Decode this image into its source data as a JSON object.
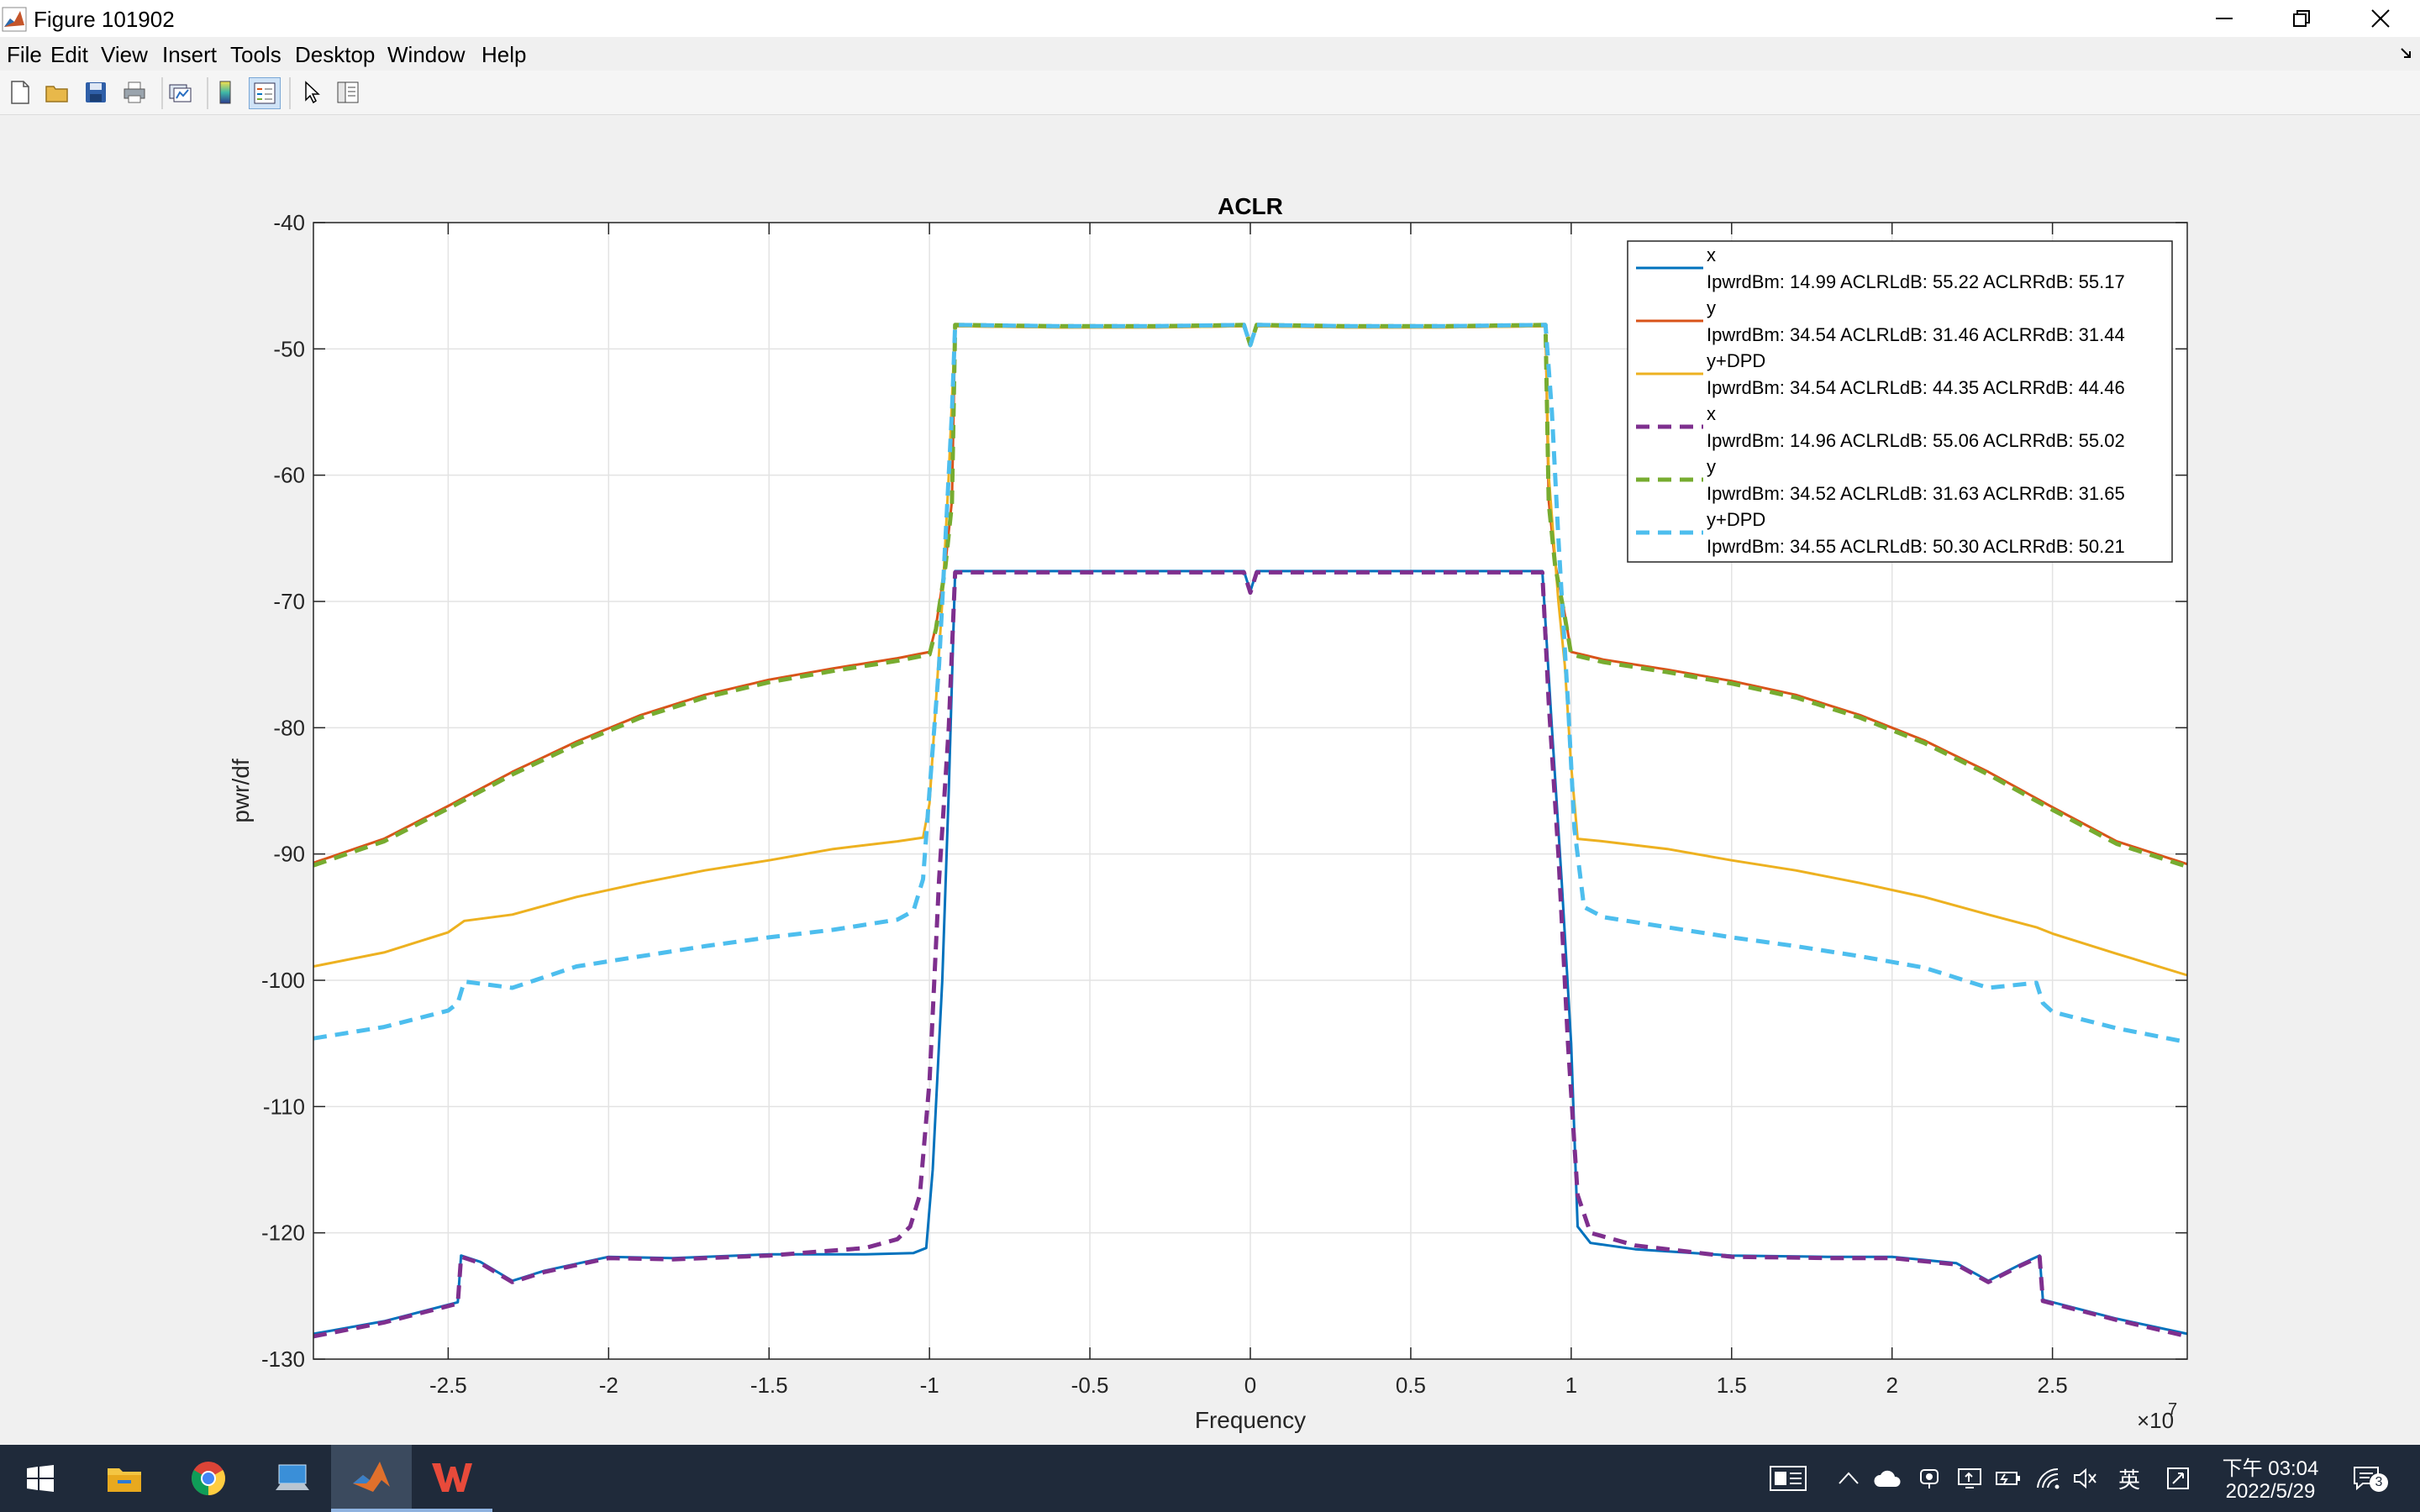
{
  "window": {
    "title": "Figure 101902"
  },
  "menu": [
    "File",
    "Edit",
    "View",
    "Insert",
    "Tools",
    "Desktop",
    "Window",
    "Help"
  ],
  "toolbar_icons": [
    "new-figure-icon",
    "open-file-icon",
    "save-icon",
    "print-icon",
    "link-plot-icon",
    "colorbar-icon",
    "legend-icon",
    "pointer-icon",
    "property-editor-icon"
  ],
  "taskbar": {
    "apps": [
      "windows-start-icon",
      "file-explorer-icon",
      "chrome-icon",
      "this-pc-icon",
      "matlab-icon",
      "wps-icon"
    ],
    "tray_ime": "英",
    "clock_time": "下午 03:04",
    "clock_date": "2022/5/29",
    "notification_count": "3"
  },
  "chart_data": {
    "type": "line",
    "title": "ACLR",
    "xlabel": "Frequency",
    "ylabel": "pwr/df",
    "x_exponent_label": "×10",
    "x_exponent_power": "7",
    "xlim": [
      -29200000.0,
      29200000.0
    ],
    "ylim": [
      -130,
      -40
    ],
    "xticks": [
      -2.5,
      -2,
      -1.5,
      -1,
      -0.5,
      0,
      0.5,
      1,
      1.5,
      2,
      2.5
    ],
    "xtick_labels": [
      "-2.5",
      "-2",
      "-1.5",
      "-1",
      "-0.5",
      "0",
      "0.5",
      "1",
      "1.5",
      "2",
      "2.5"
    ],
    "yticks": [
      -40,
      -50,
      -60,
      -70,
      -80,
      -90,
      -100,
      -110,
      -120,
      -130
    ],
    "ytick_labels": [
      "-40",
      "-50",
      "-60",
      "-70",
      "-80",
      "-90",
      "-100",
      "-110",
      "-120",
      "-130"
    ],
    "grid": true,
    "legend_position": "top-right",
    "series": [
      {
        "name": "x",
        "stats": "IpwrdBm: 14.99 ACLRLdB: 55.22 ACLRRdB: 55.17",
        "color": "#0072bd",
        "dash": "solid",
        "points": [
          [
            -2.92,
            -128
          ],
          [
            -2.7,
            -127
          ],
          [
            -2.47,
            -125.5
          ],
          [
            -2.46,
            -121.8
          ],
          [
            -2.4,
            -122.3
          ],
          [
            -2.3,
            -123.8
          ],
          [
            -2.2,
            -123
          ],
          [
            -2.0,
            -121.9
          ],
          [
            -1.8,
            -122
          ],
          [
            -1.5,
            -121.7
          ],
          [
            -1.2,
            -121.7
          ],
          [
            -1.05,
            -121.6
          ],
          [
            -1.01,
            -121.2
          ],
          [
            -0.99,
            -115
          ],
          [
            -0.96,
            -100
          ],
          [
            -0.94,
            -85
          ],
          [
            -0.92,
            -67.6
          ],
          [
            -0.6,
            -67.6
          ],
          [
            -0.3,
            -67.6
          ],
          [
            -0.02,
            -67.6
          ],
          [
            0,
            -69.2
          ],
          [
            0.02,
            -67.6
          ],
          [
            0.3,
            -67.6
          ],
          [
            0.6,
            -67.6
          ],
          [
            0.91,
            -67.6
          ],
          [
            0.94,
            -80
          ],
          [
            0.97,
            -92
          ],
          [
            1.0,
            -105
          ],
          [
            1.02,
            -119.5
          ],
          [
            1.06,
            -120.8
          ],
          [
            1.2,
            -121.3
          ],
          [
            1.5,
            -121.8
          ],
          [
            1.8,
            -121.9
          ],
          [
            2.0,
            -121.9
          ],
          [
            2.2,
            -122.4
          ],
          [
            2.3,
            -123.8
          ],
          [
            2.4,
            -122.5
          ],
          [
            2.46,
            -121.8
          ],
          [
            2.47,
            -125.3
          ],
          [
            2.7,
            -126.8
          ],
          [
            2.92,
            -128
          ]
        ]
      },
      {
        "name": "y",
        "stats": "IpwrdBm: 34.54 ACLRLdB: 31.46 ACLRRdB: 31.44",
        "color": "#d95319",
        "dash": "solid",
        "points": [
          [
            -2.92,
            -90.7
          ],
          [
            -2.7,
            -88.8
          ],
          [
            -2.5,
            -86.2
          ],
          [
            -2.3,
            -83.5
          ],
          [
            -2.1,
            -81.1
          ],
          [
            -1.9,
            -79
          ],
          [
            -1.7,
            -77.4
          ],
          [
            -1.5,
            -76.2
          ],
          [
            -1.3,
            -75.3
          ],
          [
            -1.1,
            -74.5
          ],
          [
            -1.0,
            -74
          ],
          [
            -0.98,
            -72
          ],
          [
            -0.95,
            -67
          ],
          [
            -0.93,
            -62
          ],
          [
            -0.92,
            -48.2
          ],
          [
            -0.6,
            -48.3
          ],
          [
            -0.3,
            -48.3
          ],
          [
            -0.02,
            -48.2
          ],
          [
            0,
            -49.6
          ],
          [
            0.02,
            -48.2
          ],
          [
            0.3,
            -48.3
          ],
          [
            0.6,
            -48.3
          ],
          [
            0.92,
            -48.2
          ],
          [
            0.93,
            -62
          ],
          [
            0.95,
            -67
          ],
          [
            0.98,
            -71
          ],
          [
            1.0,
            -74
          ],
          [
            1.1,
            -74.6
          ],
          [
            1.3,
            -75.4
          ],
          [
            1.5,
            -76.3
          ],
          [
            1.7,
            -77.4
          ],
          [
            1.9,
            -79
          ],
          [
            2.1,
            -81
          ],
          [
            2.3,
            -83.5
          ],
          [
            2.5,
            -86.3
          ],
          [
            2.7,
            -89
          ],
          [
            2.92,
            -90.8
          ]
        ]
      },
      {
        "name": "y+DPD",
        "stats": "IpwrdBm: 34.54 ACLRLdB: 44.35 ACLRRdB: 44.46",
        "color": "#edb120",
        "dash": "solid",
        "points": [
          [
            -2.92,
            -98.9
          ],
          [
            -2.7,
            -97.8
          ],
          [
            -2.5,
            -96.2
          ],
          [
            -2.45,
            -95.3
          ],
          [
            -2.3,
            -94.8
          ],
          [
            -2.1,
            -93.4
          ],
          [
            -1.9,
            -92.3
          ],
          [
            -1.7,
            -91.3
          ],
          [
            -1.5,
            -90.5
          ],
          [
            -1.3,
            -89.6
          ],
          [
            -1.1,
            -89
          ],
          [
            -1.02,
            -88.7
          ],
          [
            -1.0,
            -86
          ],
          [
            -0.98,
            -78
          ],
          [
            -0.96,
            -70
          ],
          [
            -0.94,
            -60
          ],
          [
            -0.92,
            -48.2
          ],
          [
            -0.6,
            -48.3
          ],
          [
            -0.3,
            -48.3
          ],
          [
            -0.02,
            -48.2
          ],
          [
            0,
            -49.6
          ],
          [
            0.02,
            -48.2
          ],
          [
            0.3,
            -48.3
          ],
          [
            0.6,
            -48.3
          ],
          [
            0.92,
            -48.2
          ],
          [
            0.93,
            -60
          ],
          [
            0.96,
            -70
          ],
          [
            0.98,
            -75
          ],
          [
            1.0,
            -83
          ],
          [
            1.02,
            -88.8
          ],
          [
            1.1,
            -89
          ],
          [
            1.3,
            -89.6
          ],
          [
            1.5,
            -90.5
          ],
          [
            1.7,
            -91.3
          ],
          [
            1.9,
            -92.3
          ],
          [
            2.1,
            -93.4
          ],
          [
            2.3,
            -94.8
          ],
          [
            2.45,
            -95.8
          ],
          [
            2.5,
            -96.3
          ],
          [
            2.7,
            -97.9
          ],
          [
            2.92,
            -99.6
          ]
        ]
      },
      {
        "name": "x",
        "stats": "IpwrdBm: 14.96 ACLRLdB: 55.06 ACLRRdB: 55.02",
        "color": "#7e2f8e",
        "dash": "dash",
        "points": [
          [
            -2.92,
            -128.2
          ],
          [
            -2.7,
            -127.1
          ],
          [
            -2.47,
            -125.6
          ],
          [
            -2.46,
            -121.9
          ],
          [
            -2.4,
            -122.4
          ],
          [
            -2.3,
            -123.9
          ],
          [
            -2.2,
            -123.1
          ],
          [
            -2.0,
            -122
          ],
          [
            -1.8,
            -122.1
          ],
          [
            -1.5,
            -121.8
          ],
          [
            -1.2,
            -121.2
          ],
          [
            -1.1,
            -120.5
          ],
          [
            -1.06,
            -119.5
          ],
          [
            -1.03,
            -117
          ],
          [
            -1.0,
            -108
          ],
          [
            -0.97,
            -92
          ],
          [
            -0.94,
            -80
          ],
          [
            -0.92,
            -67.7
          ],
          [
            -0.6,
            -67.7
          ],
          [
            -0.3,
            -67.7
          ],
          [
            -0.02,
            -67.7
          ],
          [
            0,
            -69.3
          ],
          [
            0.02,
            -67.7
          ],
          [
            0.3,
            -67.7
          ],
          [
            0.6,
            -67.7
          ],
          [
            0.91,
            -67.7
          ],
          [
            0.93,
            -78
          ],
          [
            0.96,
            -90
          ],
          [
            0.99,
            -105
          ],
          [
            1.02,
            -117
          ],
          [
            1.06,
            -120
          ],
          [
            1.2,
            -121
          ],
          [
            1.5,
            -121.9
          ],
          [
            1.8,
            -122
          ],
          [
            2.0,
            -122
          ],
          [
            2.2,
            -122.5
          ],
          [
            2.3,
            -123.9
          ],
          [
            2.4,
            -122.6
          ],
          [
            2.46,
            -121.9
          ],
          [
            2.47,
            -125.4
          ],
          [
            2.7,
            -126.9
          ],
          [
            2.92,
            -128.2
          ]
        ]
      },
      {
        "name": "y",
        "stats": "IpwrdBm: 34.52 ACLRLdB: 31.63 ACLRRdB: 31.65",
        "color": "#77ac30",
        "dash": "dash",
        "points": [
          [
            -2.92,
            -90.9
          ],
          [
            -2.7,
            -89
          ],
          [
            -2.5,
            -86.4
          ],
          [
            -2.3,
            -83.7
          ],
          [
            -2.1,
            -81.3
          ],
          [
            -1.9,
            -79.2
          ],
          [
            -1.7,
            -77.6
          ],
          [
            -1.5,
            -76.4
          ],
          [
            -1.3,
            -75.5
          ],
          [
            -1.1,
            -74.7
          ],
          [
            -1.0,
            -74.2
          ],
          [
            -0.98,
            -72.2
          ],
          [
            -0.95,
            -67.2
          ],
          [
            -0.93,
            -62.2
          ],
          [
            -0.92,
            -48.1
          ],
          [
            -0.6,
            -48.2
          ],
          [
            -0.3,
            -48.2
          ],
          [
            -0.02,
            -48.1
          ],
          [
            0,
            -49.7
          ],
          [
            0.02,
            -48.1
          ],
          [
            0.3,
            -48.2
          ],
          [
            0.6,
            -48.2
          ],
          [
            0.92,
            -48.1
          ],
          [
            0.93,
            -62.2
          ],
          [
            0.95,
            -67.2
          ],
          [
            0.98,
            -71.2
          ],
          [
            1.0,
            -74.2
          ],
          [
            1.1,
            -74.8
          ],
          [
            1.3,
            -75.6
          ],
          [
            1.5,
            -76.5
          ],
          [
            1.7,
            -77.6
          ],
          [
            1.9,
            -79.2
          ],
          [
            2.1,
            -81.2
          ],
          [
            2.3,
            -83.7
          ],
          [
            2.5,
            -86.5
          ],
          [
            2.7,
            -89.2
          ],
          [
            2.92,
            -91
          ]
        ]
      },
      {
        "name": "y+DPD",
        "stats": "IpwrdBm: 34.55 ACLRLdB: 50.30 ACLRRdB: 50.21",
        "color": "#4dbeee",
        "dash": "dash",
        "points": [
          [
            -2.92,
            -104.6
          ],
          [
            -2.7,
            -103.7
          ],
          [
            -2.5,
            -102.4
          ],
          [
            -2.47,
            -101.8
          ],
          [
            -2.45,
            -100.1
          ],
          [
            -2.3,
            -100.6
          ],
          [
            -2.1,
            -98.9
          ],
          [
            -1.9,
            -98.1
          ],
          [
            -1.7,
            -97.3
          ],
          [
            -1.5,
            -96.6
          ],
          [
            -1.3,
            -96
          ],
          [
            -1.1,
            -95.2
          ],
          [
            -1.05,
            -94.5
          ],
          [
            -1.02,
            -92
          ],
          [
            -1.0,
            -85
          ],
          [
            -0.97,
            -75
          ],
          [
            -0.95,
            -65
          ],
          [
            -0.93,
            -55
          ],
          [
            -0.92,
            -48.1
          ],
          [
            -0.6,
            -48.2
          ],
          [
            -0.3,
            -48.2
          ],
          [
            -0.02,
            -48.1
          ],
          [
            0,
            -49.7
          ],
          [
            0.02,
            -48.1
          ],
          [
            0.3,
            -48.2
          ],
          [
            0.6,
            -48.2
          ],
          [
            0.92,
            -48.1
          ],
          [
            0.94,
            -55
          ],
          [
            0.96,
            -65
          ],
          [
            0.99,
            -78
          ],
          [
            1.01,
            -88
          ],
          [
            1.04,
            -94.2
          ],
          [
            1.1,
            -95
          ],
          [
            1.3,
            -95.8
          ],
          [
            1.5,
            -96.6
          ],
          [
            1.7,
            -97.3
          ],
          [
            1.9,
            -98.1
          ],
          [
            2.1,
            -99
          ],
          [
            2.3,
            -100.6
          ],
          [
            2.45,
            -100.2
          ],
          [
            2.47,
            -101.8
          ],
          [
            2.5,
            -102.5
          ],
          [
            2.7,
            -103.8
          ],
          [
            2.92,
            -104.9
          ]
        ]
      }
    ]
  }
}
